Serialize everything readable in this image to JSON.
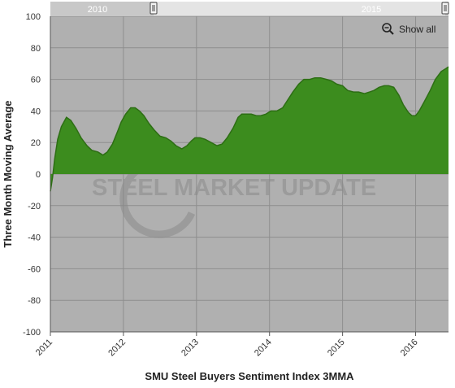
{
  "chart_data": {
    "type": "area",
    "title": "",
    "xlabel": "SMU Steel Buyers Sentiment Index 3MMA",
    "ylabel": "Three Month Moving Average",
    "xlim": [
      2011.0,
      2016.45
    ],
    "ylim": [
      -100,
      100
    ],
    "y_ticks": [
      100,
      80,
      60,
      40,
      20,
      0,
      -20,
      -40,
      -60,
      -80,
      -100
    ],
    "x_ticks": [
      2011,
      2012,
      2013,
      2014,
      2015,
      2016
    ],
    "x_tick_labels": [
      "2011",
      "2012",
      "2013",
      "2014",
      "2015",
      "2016"
    ],
    "grid": true,
    "colors": {
      "fill": "#3c8c1e",
      "line": "#2d6e14",
      "plot_bg": "#b0b0b0",
      "grid": "#8e8e8e"
    },
    "series": [
      {
        "values": [
          [
            2011.0,
            -11
          ],
          [
            2011.03,
            -2
          ],
          [
            2011.06,
            10
          ],
          [
            2011.1,
            22
          ],
          [
            2011.15,
            30
          ],
          [
            2011.22,
            36
          ],
          [
            2011.28,
            34
          ],
          [
            2011.35,
            29
          ],
          [
            2011.42,
            23
          ],
          [
            2011.5,
            18
          ],
          [
            2011.57,
            15
          ],
          [
            2011.65,
            14
          ],
          [
            2011.72,
            12
          ],
          [
            2011.78,
            14
          ],
          [
            2011.85,
            19
          ],
          [
            2011.92,
            27
          ],
          [
            2011.97,
            33
          ],
          [
            2012.03,
            38
          ],
          [
            2012.1,
            42
          ],
          [
            2012.16,
            42
          ],
          [
            2012.22,
            40
          ],
          [
            2012.28,
            37
          ],
          [
            2012.35,
            32
          ],
          [
            2012.42,
            28
          ],
          [
            2012.5,
            24
          ],
          [
            2012.58,
            23
          ],
          [
            2012.65,
            21
          ],
          [
            2012.72,
            18
          ],
          [
            2012.8,
            16
          ],
          [
            2012.87,
            18
          ],
          [
            2012.93,
            21
          ],
          [
            2012.98,
            23
          ],
          [
            2013.05,
            23
          ],
          [
            2013.12,
            22
          ],
          [
            2013.2,
            20
          ],
          [
            2013.28,
            18
          ],
          [
            2013.35,
            19
          ],
          [
            2013.42,
            23
          ],
          [
            2013.5,
            29
          ],
          [
            2013.57,
            36
          ],
          [
            2013.62,
            38
          ],
          [
            2013.68,
            38
          ],
          [
            2013.75,
            38
          ],
          [
            2013.82,
            37
          ],
          [
            2013.88,
            37
          ],
          [
            2013.95,
            38
          ],
          [
            2014.02,
            40
          ],
          [
            2014.1,
            40
          ],
          [
            2014.18,
            42
          ],
          [
            2014.25,
            47
          ],
          [
            2014.32,
            52
          ],
          [
            2014.4,
            57
          ],
          [
            2014.47,
            60
          ],
          [
            2014.55,
            60
          ],
          [
            2014.62,
            61
          ],
          [
            2014.7,
            61
          ],
          [
            2014.78,
            60
          ],
          [
            2014.85,
            59
          ],
          [
            2014.92,
            57
          ],
          [
            2015.0,
            56
          ],
          [
            2015.07,
            53
          ],
          [
            2015.15,
            52
          ],
          [
            2015.22,
            52
          ],
          [
            2015.3,
            51
          ],
          [
            2015.37,
            52
          ],
          [
            2015.43,
            53
          ],
          [
            2015.5,
            55
          ],
          [
            2015.57,
            56
          ],
          [
            2015.63,
            56
          ],
          [
            2015.7,
            55
          ],
          [
            2015.77,
            50
          ],
          [
            2015.83,
            44
          ],
          [
            2015.9,
            39
          ],
          [
            2015.95,
            37
          ],
          [
            2016.0,
            37
          ],
          [
            2016.05,
            40
          ],
          [
            2016.12,
            46
          ],
          [
            2016.2,
            53
          ],
          [
            2016.27,
            60
          ],
          [
            2016.35,
            65
          ],
          [
            2016.42,
            67
          ],
          [
            2016.45,
            68
          ]
        ]
      }
    ]
  },
  "navigator": {
    "left_label": "2010",
    "right_label": "2015"
  },
  "zoom": {
    "label": "Show all",
    "icon": "zoom-out-icon"
  },
  "watermark": {
    "text": "STEEL MARKET UPDATE"
  }
}
